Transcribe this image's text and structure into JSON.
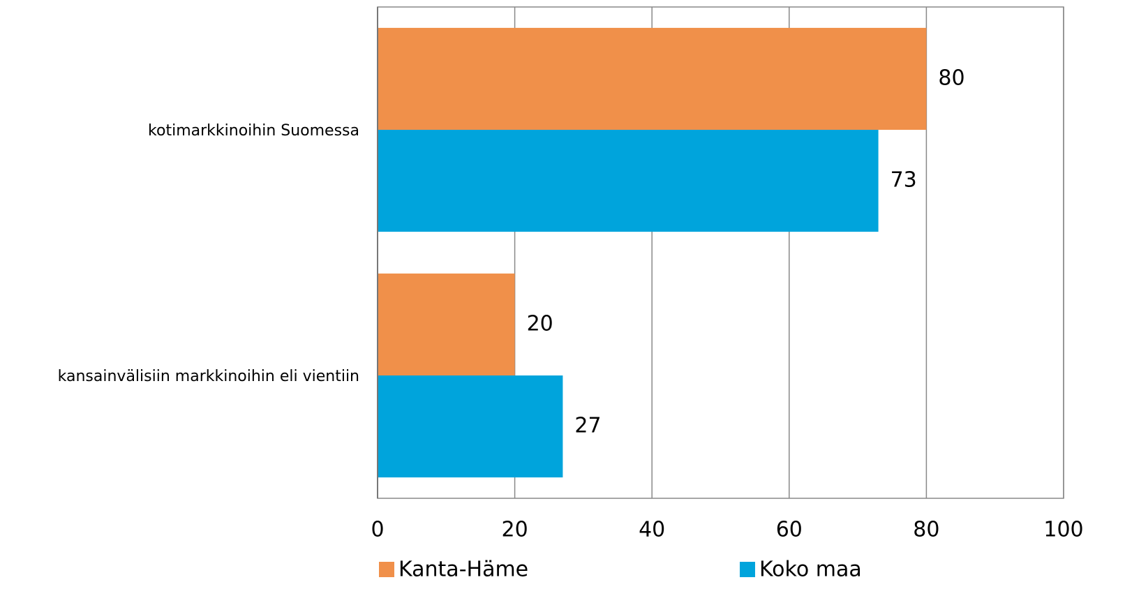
{
  "chart_data": {
    "type": "bar",
    "orientation": "horizontal",
    "categories": [
      "kotimarkkinoihin Suomessa",
      "kansainvälisiin markkinoihin eli vientiin"
    ],
    "series": [
      {
        "name": "Kanta-Häme",
        "color": "#f0904a",
        "values": [
          80,
          20
        ]
      },
      {
        "name": "Koko maa",
        "color": "#00a4dc",
        "values": [
          73,
          27
        ]
      }
    ],
    "xlim": [
      0,
      100
    ],
    "xticks": [
      0,
      20,
      40,
      60,
      80,
      100
    ],
    "grid": true,
    "legend": "bottom"
  }
}
